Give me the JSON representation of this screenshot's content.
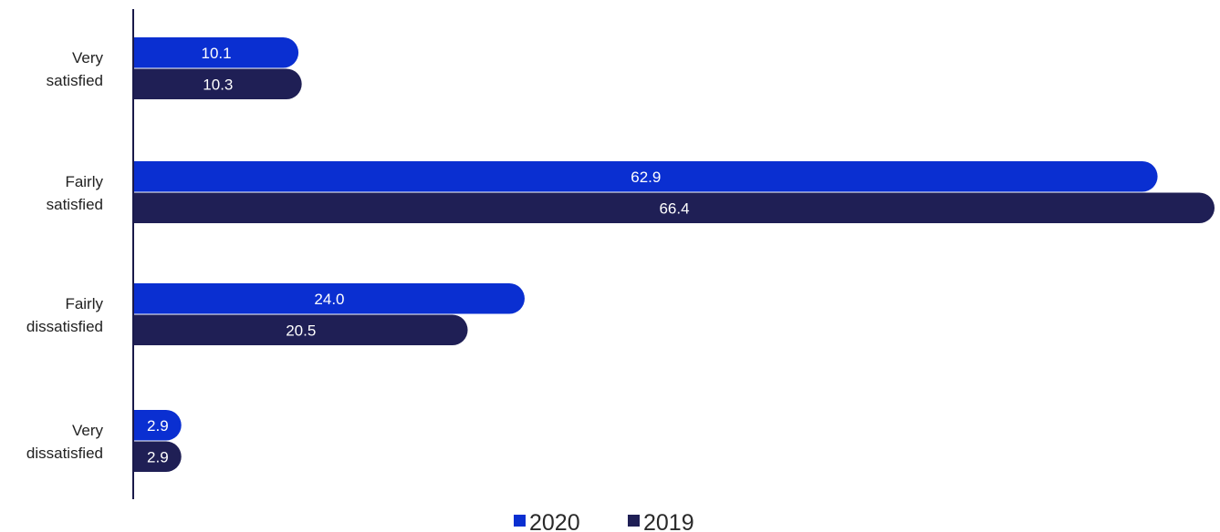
{
  "chart_data": {
    "type": "bar",
    "orientation": "horizontal",
    "categories": [
      [
        "Very",
        "satisfied"
      ],
      [
        "Fairly",
        "satisfied"
      ],
      [
        "Fairly",
        "dissatisfied"
      ],
      [
        "Very",
        "dissatisfied"
      ]
    ],
    "series": [
      {
        "name": "2020",
        "color": "#0a2fd1",
        "values": [
          10.1,
          62.9,
          24.0,
          2.9
        ],
        "labels": [
          "10.1",
          "62.9",
          "24.0",
          "2.9"
        ]
      },
      {
        "name": "2019",
        "color": "#1f1f55",
        "values": [
          10.3,
          66.4,
          20.5,
          2.9
        ],
        "labels": [
          "10.3",
          "66.4",
          "20.5",
          "2.9"
        ]
      }
    ],
    "xlim": [
      0,
      66.4
    ],
    "grid": false,
    "legend_position": "bottom-center"
  },
  "colors": {
    "axis": "#1a1a4a",
    "label_text": "#222222",
    "bar_text": "#ffffff"
  }
}
